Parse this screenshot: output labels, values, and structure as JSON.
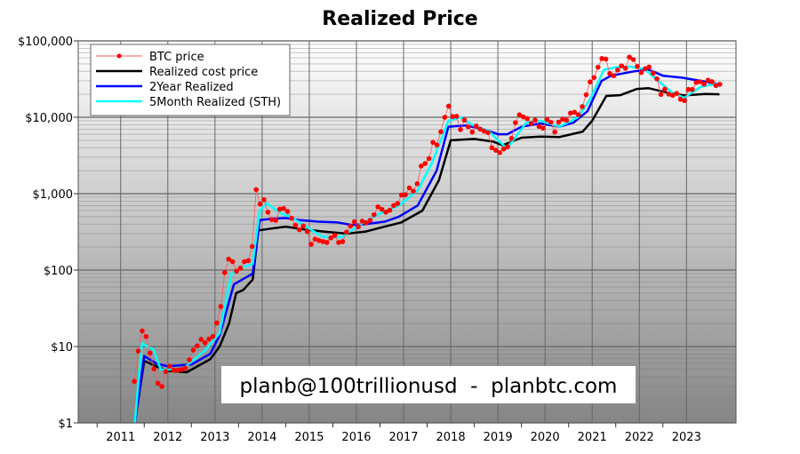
{
  "chart_data": {
    "type": "line",
    "title": "Realized Price",
    "xlabel": "",
    "ylabel": "",
    "yscale": "log",
    "ylim": [
      1,
      100000
    ],
    "xlim": [
      2010.1,
      2024.05
    ],
    "grid": true,
    "legend": "top-left",
    "watermark": "planb@100trillionusd  -  planbtc.com",
    "y_ticks": [
      {
        "v": 1,
        "label": "$1"
      },
      {
        "v": 10,
        "label": "$10"
      },
      {
        "v": 100,
        "label": "$100"
      },
      {
        "v": 1000,
        "label": "$1,000"
      },
      {
        "v": 10000,
        "label": "$10,000"
      },
      {
        "v": 100000,
        "label": "$100,000"
      }
    ],
    "x_ticks": [
      "2011",
      "2012",
      "2013",
      "2014",
      "2015",
      "2016",
      "2017",
      "2018",
      "2019",
      "2020",
      "2021",
      "2022",
      "2023"
    ],
    "btc_price": {
      "name": "BTC price",
      "color": "#ff0000",
      "start": "2011-04",
      "monthly": [
        3.5,
        8.7,
        16,
        13.5,
        8.2,
        5.1,
        3.3,
        3.0,
        4.7,
        5.5,
        4.9,
        4.9,
        5.0,
        5.2,
        6.7,
        9.0,
        10.2,
        12.4,
        11.2,
        12.5,
        13.5,
        20.4,
        33.4,
        93,
        139,
        129,
        97,
        106,
        129,
        133,
        204,
        1130,
        732,
        832,
        573,
        457,
        448,
        627,
        640,
        586,
        478,
        386,
        338,
        378,
        320,
        217,
        254,
        244,
        236,
        230,
        264,
        284,
        230,
        236,
        314,
        377,
        430,
        369,
        437,
        416,
        448,
        531,
        673,
        624,
        573,
        608,
        700,
        742,
        963,
        970,
        1190,
        1080,
        1350,
        2300,
        2480,
        2880,
        4700,
        4340,
        6450,
        10000,
        14000,
        10200,
        10300,
        6900,
        9200,
        7500,
        6400,
        7700,
        7000,
        6600,
        6300,
        4000,
        3700,
        3450,
        3850,
        4100,
        5300,
        8500,
        10800,
        10100,
        9600,
        8300,
        9200,
        7600,
        7200,
        9350,
        8600,
        6400,
        8650,
        9450,
        9150,
        11350,
        11650,
        10780,
        13800,
        19700,
        29000,
        33100,
        45200,
        58800,
        57700,
        37300,
        35000,
        41500,
        47100,
        43800,
        61300,
        57000,
        46300,
        38500,
        43200,
        45500,
        37700,
        31800,
        19900,
        23300,
        20100,
        19400,
        20500,
        17200,
        16500,
        23100,
        23100,
        28500,
        29200,
        27200,
        30500,
        29200,
        26000,
        27000
      ]
    },
    "series": [
      {
        "name": "Realized cost price",
        "color": "#000000",
        "points": [
          [
            2011.3,
            0.8
          ],
          [
            2011.5,
            6.5
          ],
          [
            2011.75,
            5.5
          ],
          [
            2012.0,
            4.8
          ],
          [
            2012.4,
            4.6
          ],
          [
            2012.9,
            6.8
          ],
          [
            2013.1,
            10
          ],
          [
            2013.3,
            20
          ],
          [
            2013.45,
            50
          ],
          [
            2013.6,
            55
          ],
          [
            2013.8,
            75
          ],
          [
            2013.92,
            330
          ],
          [
            2014.2,
            350
          ],
          [
            2014.5,
            370
          ],
          [
            2014.9,
            340
          ],
          [
            2015.3,
            320
          ],
          [
            2015.8,
            300
          ],
          [
            2016.2,
            320
          ],
          [
            2016.6,
            370
          ],
          [
            2016.95,
            420
          ],
          [
            2017.4,
            600
          ],
          [
            2017.75,
            1500
          ],
          [
            2018.0,
            5000
          ],
          [
            2018.5,
            5200
          ],
          [
            2018.9,
            4800
          ],
          [
            2019.1,
            4300
          ],
          [
            2019.5,
            5400
          ],
          [
            2019.9,
            5600
          ],
          [
            2020.3,
            5500
          ],
          [
            2020.8,
            6500
          ],
          [
            2021.0,
            9000
          ],
          [
            2021.3,
            19000
          ],
          [
            2021.6,
            19500
          ],
          [
            2021.95,
            23500
          ],
          [
            2022.2,
            24000
          ],
          [
            2022.6,
            21000
          ],
          [
            2022.95,
            19300
          ],
          [
            2023.4,
            20200
          ],
          [
            2023.7,
            20000
          ]
        ]
      },
      {
        "name": "2Year Realized",
        "color": "#0000ff",
        "points": [
          [
            2011.3,
            0.8
          ],
          [
            2011.5,
            7.5
          ],
          [
            2011.75,
            6
          ],
          [
            2012.0,
            5.5
          ],
          [
            2012.5,
            5.8
          ],
          [
            2012.9,
            8
          ],
          [
            2013.1,
            14
          ],
          [
            2013.4,
            65
          ],
          [
            2013.8,
            90
          ],
          [
            2013.95,
            450
          ],
          [
            2014.2,
            470
          ],
          [
            2014.5,
            480
          ],
          [
            2014.8,
            450
          ],
          [
            2015.2,
            430
          ],
          [
            2015.6,
            420
          ],
          [
            2015.9,
            390
          ],
          [
            2016.2,
            400
          ],
          [
            2016.6,
            430
          ],
          [
            2016.9,
            500
          ],
          [
            2017.3,
            700
          ],
          [
            2017.7,
            2000
          ],
          [
            2017.95,
            7500
          ],
          [
            2018.3,
            7800
          ],
          [
            2018.7,
            7000
          ],
          [
            2019.0,
            6000
          ],
          [
            2019.2,
            6000
          ],
          [
            2019.5,
            7500
          ],
          [
            2019.9,
            8300
          ],
          [
            2020.3,
            7500
          ],
          [
            2020.6,
            8500
          ],
          [
            2020.9,
            12000
          ],
          [
            2021.2,
            30000
          ],
          [
            2021.4,
            35000
          ],
          [
            2021.9,
            40000
          ],
          [
            2022.2,
            42000
          ],
          [
            2022.5,
            35000
          ],
          [
            2022.9,
            33000
          ],
          [
            2023.3,
            30000
          ],
          [
            2023.7,
            27000
          ]
        ]
      },
      {
        "name": "5Month Realized (STH)",
        "color": "#00ffff",
        "points": [
          [
            2011.3,
            0.8
          ],
          [
            2011.45,
            11
          ],
          [
            2011.7,
            9
          ],
          [
            2011.85,
            5
          ],
          [
            2012.3,
            5
          ],
          [
            2012.8,
            9
          ],
          [
            2013.1,
            15
          ],
          [
            2013.35,
            90
          ],
          [
            2013.6,
            110
          ],
          [
            2013.8,
            120
          ],
          [
            2013.95,
            600
          ],
          [
            2014.1,
            750
          ],
          [
            2014.4,
            550
          ],
          [
            2014.6,
            500
          ],
          [
            2015.0,
            350
          ],
          [
            2015.3,
            270
          ],
          [
            2015.7,
            270
          ],
          [
            2016.0,
            370
          ],
          [
            2016.5,
            550
          ],
          [
            2016.9,
            700
          ],
          [
            2017.3,
            1100
          ],
          [
            2017.6,
            2500
          ],
          [
            2017.95,
            9000
          ],
          [
            2018.2,
            10000
          ],
          [
            2018.5,
            7700
          ],
          [
            2018.8,
            6700
          ],
          [
            2019.0,
            5000
          ],
          [
            2019.2,
            3900
          ],
          [
            2019.6,
            8500
          ],
          [
            2019.9,
            9000
          ],
          [
            2020.3,
            7500
          ],
          [
            2020.7,
            10000
          ],
          [
            2020.95,
            17000
          ],
          [
            2021.25,
            42000
          ],
          [
            2021.5,
            45000
          ],
          [
            2021.8,
            46000
          ],
          [
            2022.1,
            43000
          ],
          [
            2022.4,
            30000
          ],
          [
            2022.7,
            21000
          ],
          [
            2022.95,
            18000
          ],
          [
            2023.3,
            25000
          ],
          [
            2023.7,
            28000
          ]
        ]
      }
    ]
  }
}
